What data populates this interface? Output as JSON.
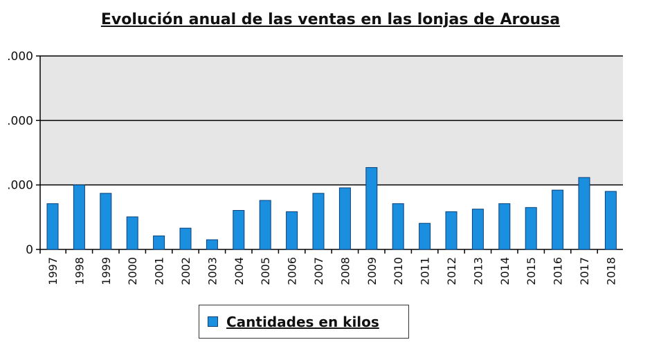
{
  "chart_data": {
    "type": "bar",
    "title": "Evolución anual de las ventas en las lonjas de Arousa",
    "xlabel": "",
    "ylabel": "",
    "categories": [
      "1997",
      "1998",
      "1999",
      "2000",
      "2001",
      "2002",
      "2003",
      "2004",
      "2005",
      "2006",
      "2007",
      "2008",
      "2009",
      "2010",
      "2011",
      "2012",
      "2013",
      "2014",
      "2015",
      "2016",
      "2017",
      "2018"
    ],
    "series": [
      {
        "name": "Cantidades en kilos",
        "values": [
          1.42,
          2.0,
          1.74,
          1.01,
          0.42,
          0.66,
          0.3,
          1.21,
          1.52,
          1.17,
          1.74,
          1.91,
          2.54,
          1.42,
          0.81,
          1.17,
          1.25,
          1.42,
          1.3,
          1.84,
          2.23,
          1.8
        ],
        "color": "#1a8fe0"
      }
    ],
    "y_ticks": [
      {
        "value": 0,
        "label": "0"
      },
      {
        "value": 2,
        "label": ".000"
      },
      {
        "value": 4,
        "label": ".000"
      },
      {
        "value": 6,
        "label": ".000"
      }
    ],
    "ylim": [
      0,
      6
    ],
    "grid": true,
    "legend": {
      "placement": "bottom",
      "label": "Cantidades en kilos"
    },
    "colors": {
      "plot_bg_upper": "#e6e6e6",
      "plot_bg_lower": "#ffffff",
      "bar_fill": "#1a8fe0",
      "bar_edge": "#0a3f77",
      "grid": "#000000"
    }
  }
}
